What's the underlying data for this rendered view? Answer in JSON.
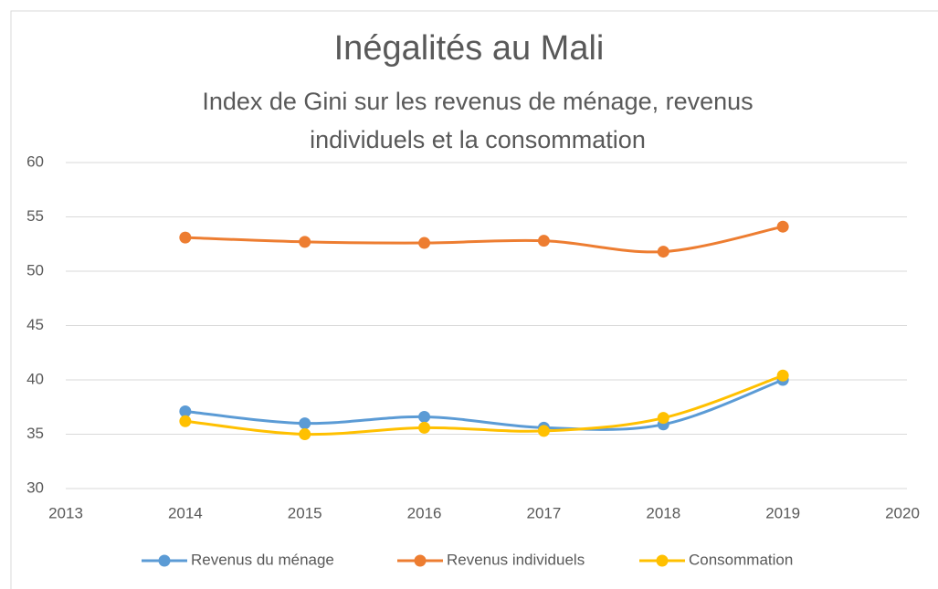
{
  "chart_data": {
    "type": "line",
    "title": "Inégalités au Mali",
    "subtitle": "Index de Gini sur les revenus de ménage, revenus individuels et la consommation",
    "x": [
      2014,
      2015,
      2016,
      2017,
      2018,
      2019
    ],
    "series": [
      {
        "name": "Revenus du ménage",
        "color": "#5b9bd5",
        "values": [
          37.1,
          36.0,
          36.6,
          35.6,
          35.9,
          40.0
        ]
      },
      {
        "name": "Revenus individuels",
        "color": "#ed7d31",
        "values": [
          53.1,
          52.7,
          52.6,
          52.8,
          51.8,
          54.1
        ]
      },
      {
        "name": "Consommation",
        "color": "#ffc000",
        "values": [
          36.2,
          35.0,
          35.6,
          35.3,
          36.5,
          40.4
        ]
      }
    ],
    "xlim": [
      2013,
      2020
    ],
    "xticks": [
      2013,
      2014,
      2015,
      2016,
      2017,
      2018,
      2019,
      2020
    ],
    "ylim": [
      30,
      60
    ],
    "yticks": [
      30,
      35,
      40,
      45,
      50,
      55,
      60
    ],
    "grid": true,
    "legend": "bottom"
  }
}
